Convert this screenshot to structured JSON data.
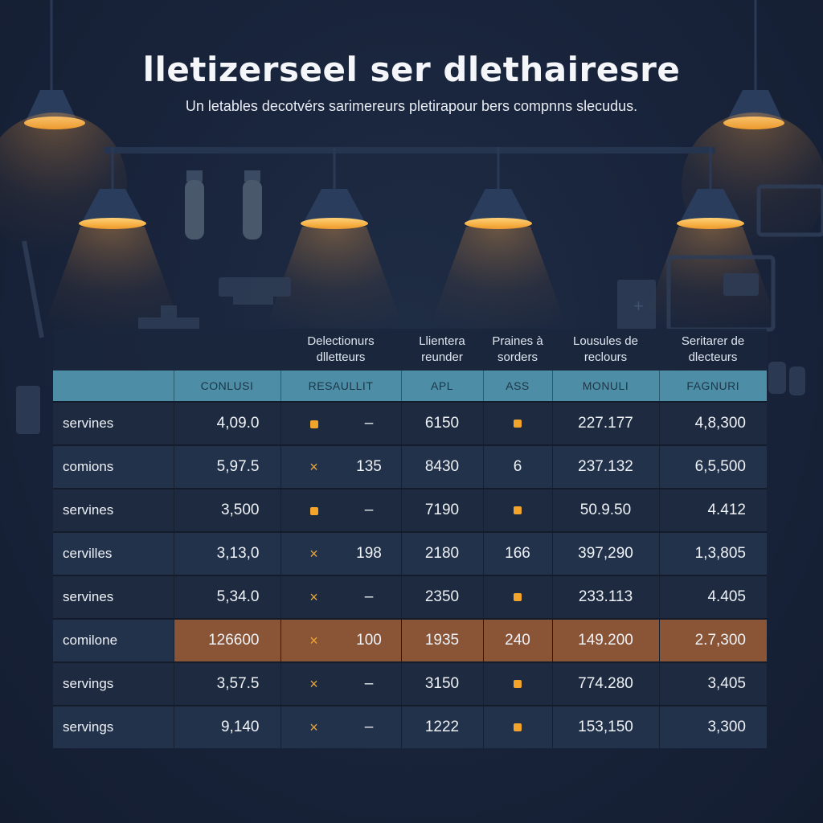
{
  "title": "lletizerseel ser dlethairesre",
  "subtitle": "Un letables decotvérs sarimereurs pletirapour bers compnns slecudus.",
  "colors": {
    "accent": "#f2a52a",
    "header_band": "#4d8ea6",
    "highlight_row": "#8a5536",
    "background": "#18233a"
  },
  "table": {
    "group_headers": [
      "",
      "",
      "Delectionurs dlletteurs",
      "Llientera reunder",
      "Praines à sorders",
      "Lousules de reclours",
      "Seritarer de dlecteurs"
    ],
    "columns": [
      "",
      "CONLUSI",
      "RESAULLIT",
      "APL",
      "ASS",
      "MONULI",
      "FAGNURI"
    ],
    "rows": [
      {
        "label": "servines",
        "c1": "4,09.0",
        "mark": "dot-icon",
        "c2": "–",
        "c3": "6150",
        "c4": "dot-icon",
        "c5": "227.177",
        "c6": "4,8,300"
      },
      {
        "label": "comions",
        "c1": "5,97.5",
        "mark": "x-icon",
        "c2": "135",
        "c3": "8430",
        "c4": "6",
        "c5": "237.132",
        "c6": "6,5,500"
      },
      {
        "label": "servines",
        "c1": "3,500",
        "mark": "dot-icon",
        "c2": "–",
        "c3": "7190",
        "c4": "dot-icon",
        "c5": "50.9.50",
        "c6": "4.412"
      },
      {
        "label": "cervilles",
        "c1": "3,13,0",
        "mark": "x-icon",
        "c2": "198",
        "c3": "2180",
        "c4": "166",
        "c5": "397,290",
        "c6": "1,3,805"
      },
      {
        "label": "servines",
        "c1": "5,34.0",
        "mark": "x-icon",
        "c2": "–",
        "c3": "2350",
        "c4": "dot-icon",
        "c5": "233.113",
        "c6": "4.405"
      },
      {
        "label": "comilone",
        "c1": "126600",
        "mark": "x-icon",
        "c2": "100",
        "c3": "1935",
        "c4": "240",
        "c5": "149.200",
        "c6": "2.7,300",
        "highlight": true
      },
      {
        "label": "servings",
        "c1": "3,57.5",
        "mark": "x-icon",
        "c2": "–",
        "c3": "3150",
        "c4": "dot-icon",
        "c5": "774.280",
        "c6": "3,405"
      },
      {
        "label": "servings",
        "c1": "9,140",
        "mark": "x-icon",
        "c2": "–",
        "c3": "1222",
        "c4": "dot-icon",
        "c5": "153,150",
        "c6": "3,300"
      }
    ]
  }
}
